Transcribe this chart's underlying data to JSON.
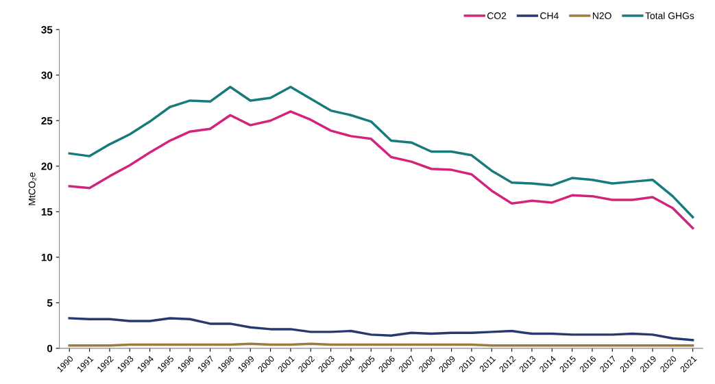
{
  "chart_data": {
    "type": "line",
    "ylabel": "MtCO₂e",
    "categories": [
      "1990",
      "1991",
      "1992",
      "1993",
      "1994",
      "1995",
      "1996",
      "1997",
      "1998",
      "1999",
      "2000",
      "2001",
      "2002",
      "2003",
      "2004",
      "2005",
      "2006",
      "2007",
      "2008",
      "2009",
      "2010",
      "2011",
      "2012",
      "2013",
      "2014",
      "2015",
      "2016",
      "2017",
      "2018",
      "2019",
      "2020",
      "2021"
    ],
    "series": [
      {
        "name": "CO2",
        "color": "#d4237a",
        "values": [
          17.8,
          17.6,
          18.9,
          20.1,
          21.5,
          22.8,
          23.8,
          24.1,
          25.6,
          24.5,
          25.0,
          26.0,
          25.1,
          23.9,
          23.3,
          23.0,
          21.0,
          20.5,
          19.7,
          19.6,
          19.1,
          17.3,
          15.9,
          16.2,
          16.0,
          16.8,
          16.7,
          16.3,
          16.3,
          16.6,
          15.4,
          13.2
        ]
      },
      {
        "name": "CH4",
        "color": "#27396e",
        "values": [
          3.3,
          3.2,
          3.2,
          3.0,
          3.0,
          3.3,
          3.2,
          2.7,
          2.7,
          2.3,
          2.1,
          2.1,
          1.8,
          1.8,
          1.9,
          1.5,
          1.4,
          1.7,
          1.6,
          1.7,
          1.7,
          1.8,
          1.9,
          1.6,
          1.6,
          1.5,
          1.5,
          1.5,
          1.6,
          1.5,
          1.1,
          0.9
        ]
      },
      {
        "name": "N2O",
        "color": "#9e7a3c",
        "values": [
          0.3,
          0.3,
          0.3,
          0.4,
          0.4,
          0.4,
          0.4,
          0.4,
          0.4,
          0.5,
          0.4,
          0.4,
          0.5,
          0.4,
          0.4,
          0.4,
          0.4,
          0.4,
          0.4,
          0.4,
          0.4,
          0.3,
          0.3,
          0.3,
          0.3,
          0.3,
          0.3,
          0.3,
          0.3,
          0.3,
          0.3,
          0.3
        ]
      },
      {
        "name": "Total GHGs",
        "color": "#177a7c",
        "values": [
          21.4,
          21.1,
          22.4,
          23.5,
          24.9,
          26.5,
          27.2,
          27.1,
          28.7,
          27.2,
          27.5,
          28.7,
          27.4,
          26.1,
          25.6,
          24.9,
          22.8,
          22.6,
          21.6,
          21.6,
          21.2,
          19.5,
          18.2,
          18.1,
          17.9,
          18.7,
          18.5,
          18.1,
          18.3,
          18.5,
          16.7,
          14.4
        ]
      }
    ],
    "ylim": [
      0,
      35
    ],
    "yticks": [
      0,
      5,
      10,
      15,
      20,
      25,
      30,
      35
    ],
    "legend": "top right",
    "grid": false,
    "marker": "none",
    "line_style": "solid"
  }
}
